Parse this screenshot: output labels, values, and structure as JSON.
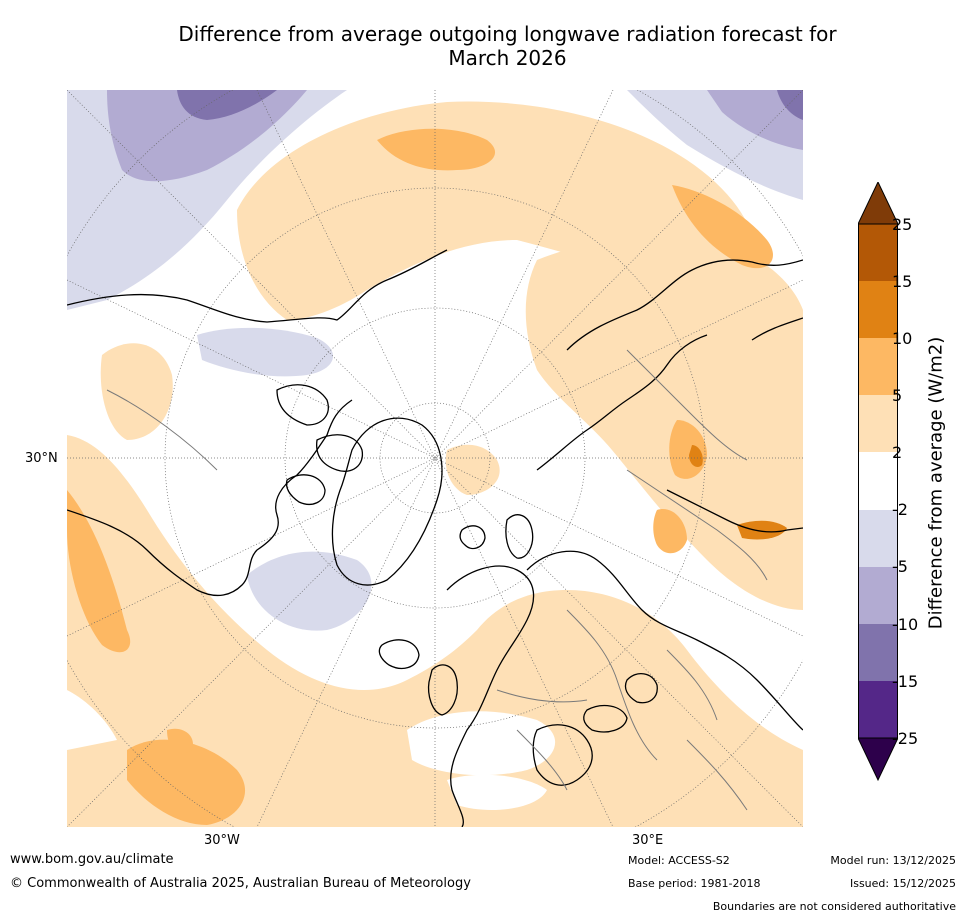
{
  "title": {
    "line1": "Difference from average outgoing longwave radiation forecast for",
    "line2": "March 2026"
  },
  "map": {
    "projection": "north-polar-stereographic",
    "lat_label": "30°N",
    "lon_labels": {
      "west": "30°W",
      "east": "30°E"
    }
  },
  "colorbar": {
    "label": "Difference from average (W/m2)",
    "ticks": [
      "25",
      "15",
      "10",
      "5",
      "2",
      "-2",
      "-5",
      "-10",
      "-15",
      "-25"
    ],
    "colors": {
      "above_25": "#7f3b08",
      "15_to_25": "#b35806",
      "10_to_15": "#e08214",
      "5_to_10": "#fdb863",
      "2_to_5": "#fee0b6",
      "neutral": "#ffffff",
      "m5_to_m2": "#d8daeb",
      "m10_to_m5": "#b2abd2",
      "m15_to_m10": "#8073ac",
      "m25_to_m15": "#542788",
      "below_m25": "#2d004b"
    }
  },
  "footer": {
    "website": "www.bom.gov.au/climate",
    "copyright": "© Commonwealth of Australia 2025, Australian Bureau of Meteorology",
    "model": "Model: ACCESS-S2",
    "base_period": "Base period: 1981-2018",
    "model_run": "Model run: 13/12/2025",
    "issued": "Issued: 15/12/2025",
    "disclaimer": "Boundaries are not considered authoritative"
  }
}
